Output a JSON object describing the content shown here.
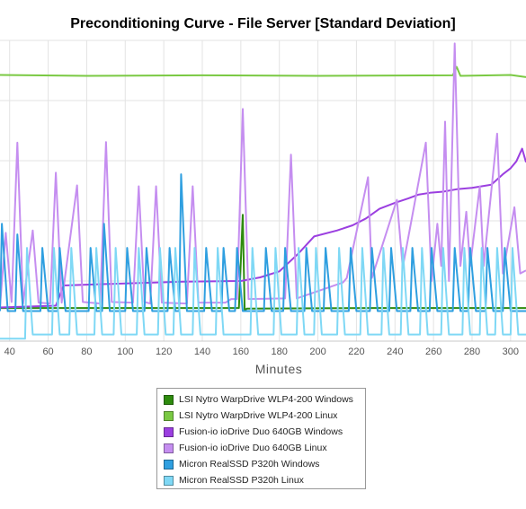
{
  "chart_data": {
    "type": "line",
    "title": "Preconditioning Curve - File Server [Standard Deviation]",
    "xlabel": "Minutes",
    "ylabel": "",
    "xlim": [
      35,
      308
    ],
    "ylim": [
      0,
      1000
    ],
    "x_ticks": [
      40,
      60,
      80,
      100,
      120,
      140,
      160,
      180,
      200,
      220,
      240,
      260,
      280,
      300
    ],
    "grid": true,
    "legend_position": "bottom",
    "series": [
      {
        "name": "LSI Nytro WarpDrive WLP4-200 Windows",
        "color": "#2e8b0e",
        "points": [
          [
            35,
            110
          ],
          [
            100,
            110
          ],
          [
            159,
            110
          ],
          [
            161,
            420
          ],
          [
            162,
            100
          ],
          [
            163,
            108
          ],
          [
            230,
            110
          ],
          [
            308,
            110
          ]
        ]
      },
      {
        "name": "LSI Nytro WarpDrive WLP4-200 Linux",
        "color": "#7ac943",
        "points": [
          [
            35,
            885
          ],
          [
            80,
            882
          ],
          [
            140,
            884
          ],
          [
            200,
            882
          ],
          [
            270,
            884
          ],
          [
            272,
            912
          ],
          [
            274,
            882
          ],
          [
            300,
            885
          ],
          [
            308,
            878
          ]
        ]
      },
      {
        "name": "Fusion-io ioDrive Duo 640GB Windows",
        "color": "#9b3fe0",
        "points": [
          [
            35,
            112
          ],
          [
            64,
            118
          ],
          [
            68,
            185
          ],
          [
            90,
            190
          ],
          [
            130,
            198
          ],
          [
            160,
            200
          ],
          [
            170,
            212
          ],
          [
            180,
            232
          ],
          [
            190,
            292
          ],
          [
            198,
            348
          ],
          [
            210,
            368
          ],
          [
            218,
            385
          ],
          [
            225,
            408
          ],
          [
            232,
            440
          ],
          [
            240,
            460
          ],
          [
            247,
            475
          ],
          [
            252,
            487
          ],
          [
            258,
            493
          ],
          [
            265,
            497
          ],
          [
            272,
            505
          ],
          [
            280,
            510
          ],
          [
            290,
            520
          ],
          [
            296,
            555
          ],
          [
            300,
            575
          ],
          [
            303,
            598
          ],
          [
            306,
            640
          ],
          [
            308,
            595
          ]
        ]
      },
      {
        "name": "Fusion-io ioDrive Duo 640GB Linux",
        "color": "#c58ef0",
        "points": [
          [
            35,
            115
          ],
          [
            38,
            360
          ],
          [
            41,
            130
          ],
          [
            44,
            660
          ],
          [
            47,
            125
          ],
          [
            52,
            368
          ],
          [
            55,
            128
          ],
          [
            61,
            125
          ],
          [
            64,
            560
          ],
          [
            67,
            128
          ],
          [
            75,
            518
          ],
          [
            78,
            130
          ],
          [
            87,
            125
          ],
          [
            90,
            662
          ],
          [
            93,
            130
          ],
          [
            104,
            128
          ],
          [
            107,
            515
          ],
          [
            110,
            130
          ],
          [
            113,
            125
          ],
          [
            116,
            515
          ],
          [
            119,
            128
          ],
          [
            132,
            125
          ],
          [
            135,
            515
          ],
          [
            138,
            128
          ],
          [
            152,
            128
          ],
          [
            155,
            140
          ],
          [
            158,
            140
          ],
          [
            161,
            772
          ],
          [
            164,
            140
          ],
          [
            183,
            142
          ],
          [
            186,
            620
          ],
          [
            189,
            142
          ],
          [
            213,
            195
          ],
          [
            215,
            210
          ],
          [
            226,
            545
          ],
          [
            228,
            210
          ],
          [
            241,
            470
          ],
          [
            244,
            245
          ],
          [
            256,
            660
          ],
          [
            259,
            200
          ],
          [
            262,
            390
          ],
          [
            264,
            250
          ],
          [
            266,
            730
          ],
          [
            268,
            200
          ],
          [
            271,
            990
          ],
          [
            274,
            250
          ],
          [
            277,
            430
          ],
          [
            279,
            250
          ],
          [
            284,
            515
          ],
          [
            286,
            250
          ],
          [
            293,
            690
          ],
          [
            296,
            225
          ],
          [
            302,
            445
          ],
          [
            305,
            225
          ],
          [
            308,
            235
          ]
        ]
      },
      {
        "name": "Micron RealSSD P320h Windows",
        "color": "#2f9fe0",
        "points": [
          [
            35,
            100
          ],
          [
            36,
            390
          ],
          [
            39,
            100
          ],
          [
            43,
            100
          ],
          [
            44,
            355
          ],
          [
            47,
            100
          ],
          [
            56,
            100
          ],
          [
            57,
            310
          ],
          [
            60,
            100
          ],
          [
            65,
            100
          ],
          [
            66,
            310
          ],
          [
            69,
            100
          ],
          [
            81,
            100
          ],
          [
            82,
            310
          ],
          [
            85,
            100
          ],
          [
            88,
            100
          ],
          [
            89,
            390
          ],
          [
            92,
            100
          ],
          [
            100,
            100
          ],
          [
            101,
            310
          ],
          [
            104,
            100
          ],
          [
            110,
            100
          ],
          [
            111,
            310
          ],
          [
            114,
            100
          ],
          [
            122,
            100
          ],
          [
            123,
            310
          ],
          [
            126,
            100
          ],
          [
            128,
            100
          ],
          [
            129,
            555
          ],
          [
            132,
            100
          ],
          [
            141,
            100
          ],
          [
            142,
            310
          ],
          [
            145,
            100
          ],
          [
            150,
            100
          ],
          [
            151,
            310
          ],
          [
            154,
            100
          ],
          [
            157,
            100
          ],
          [
            158,
            310
          ],
          [
            161,
            100
          ],
          [
            172,
            100
          ],
          [
            173,
            310
          ],
          [
            176,
            100
          ],
          [
            182,
            100
          ],
          [
            183,
            310
          ],
          [
            186,
            100
          ],
          [
            193,
            100
          ],
          [
            194,
            310
          ],
          [
            197,
            100
          ],
          [
            203,
            100
          ],
          [
            204,
            310
          ],
          [
            207,
            100
          ],
          [
            216,
            100
          ],
          [
            217,
            310
          ],
          [
            220,
            100
          ],
          [
            227,
            100
          ],
          [
            228,
            310
          ],
          [
            231,
            100
          ],
          [
            237,
            100
          ],
          [
            238,
            310
          ],
          [
            241,
            100
          ],
          [
            248,
            100
          ],
          [
            249,
            310
          ],
          [
            252,
            100
          ],
          [
            258,
            100
          ],
          [
            259,
            310
          ],
          [
            262,
            100
          ],
          [
            270,
            100
          ],
          [
            271,
            310
          ],
          [
            274,
            100
          ],
          [
            278,
            100
          ],
          [
            279,
            310
          ],
          [
            282,
            100
          ],
          [
            287,
            100
          ],
          [
            288,
            310
          ],
          [
            291,
            100
          ],
          [
            296,
            100
          ],
          [
            297,
            310
          ],
          [
            300,
            100
          ],
          [
            308,
            100
          ]
        ]
      },
      {
        "name": "Micron RealSSD P320h Linux",
        "color": "#7fd8f5",
        "points": [
          [
            35,
            8
          ],
          [
            48,
            8
          ],
          [
            49,
            310
          ],
          [
            52,
            22
          ],
          [
            62,
            22
          ],
          [
            63,
            310
          ],
          [
            66,
            22
          ],
          [
            71,
            22
          ],
          [
            72,
            310
          ],
          [
            75,
            22
          ],
          [
            84,
            22
          ],
          [
            85,
            310
          ],
          [
            88,
            22
          ],
          [
            94,
            22
          ],
          [
            95,
            310
          ],
          [
            98,
            22
          ],
          [
            106,
            22
          ],
          [
            107,
            310
          ],
          [
            110,
            22
          ],
          [
            117,
            22
          ],
          [
            118,
            310
          ],
          [
            121,
            22
          ],
          [
            125,
            22
          ],
          [
            126,
            310
          ],
          [
            129,
            22
          ],
          [
            135,
            22
          ],
          [
            136,
            310
          ],
          [
            139,
            22
          ],
          [
            147,
            22
          ],
          [
            148,
            310
          ],
          [
            151,
            22
          ],
          [
            165,
            22
          ],
          [
            166,
            310
          ],
          [
            169,
            22
          ],
          [
            177,
            22
          ],
          [
            178,
            310
          ],
          [
            181,
            22
          ],
          [
            189,
            22
          ],
          [
            190,
            310
          ],
          [
            193,
            22
          ],
          [
            198,
            22
          ],
          [
            199,
            310
          ],
          [
            202,
            22
          ],
          [
            210,
            22
          ],
          [
            211,
            310
          ],
          [
            214,
            22
          ],
          [
            222,
            22
          ],
          [
            223,
            310
          ],
          [
            226,
            22
          ],
          [
            233,
            22
          ],
          [
            234,
            310
          ],
          [
            237,
            22
          ],
          [
            243,
            22
          ],
          [
            244,
            310
          ],
          [
            247,
            22
          ],
          [
            253,
            22
          ],
          [
            254,
            310
          ],
          [
            257,
            22
          ],
          [
            264,
            22
          ],
          [
            265,
            310
          ],
          [
            268,
            22
          ],
          [
            275,
            22
          ],
          [
            276,
            310
          ],
          [
            279,
            22
          ],
          [
            284,
            22
          ],
          [
            285,
            310
          ],
          [
            288,
            22
          ],
          [
            292,
            22
          ],
          [
            293,
            310
          ],
          [
            296,
            22
          ],
          [
            300,
            22
          ],
          [
            301,
            310
          ],
          [
            304,
            22
          ],
          [
            308,
            22
          ]
        ]
      }
    ]
  }
}
